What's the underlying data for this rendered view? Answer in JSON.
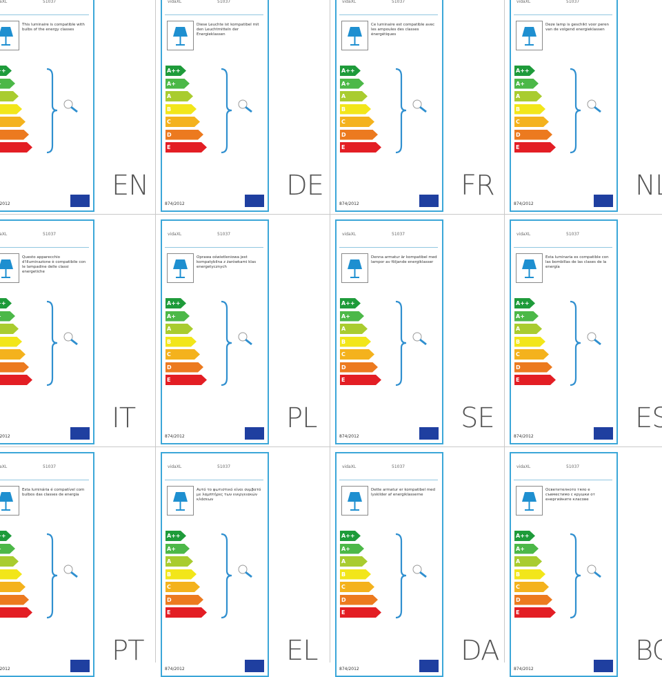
{
  "brand": "vidaXL",
  "code": "51037",
  "regulation": "874/2012",
  "classes": [
    "A++",
    "A+",
    "A",
    "B",
    "C",
    "D",
    "E"
  ],
  "class_colors": [
    "#1e9b3a",
    "#4cb848",
    "#a9cc2f",
    "#f2e61a",
    "#f4b21d",
    "#ec7a1f",
    "#e31e24"
  ],
  "border_color": "#3aa6d8",
  "icons": [
    "lamp-icon",
    "bulb-icon",
    "eu-flag-icon"
  ],
  "labels": [
    {
      "lang": "EN",
      "text": "This luminaire is compatible with bulbs of the energy classes"
    },
    {
      "lang": "DE",
      "text": "Diese Leuchte ist kompatibel mit den Leuchtmitteln der Energieklassen"
    },
    {
      "lang": "FR",
      "text": "Ce luminaire est compatible avec les ampoules des classes énergétiques"
    },
    {
      "lang": "NL",
      "text": "Deze lamp is geschikt voor peren van de volgend energieklassen"
    },
    {
      "lang": "IT",
      "text": "Questo apparecchio d'illuminazione è compatibile con le lampadine delle classi energetiche"
    },
    {
      "lang": "PL",
      "text": "Oprawa oświetleniowa jest kompatybilna z żarówkami klas energetycznych"
    },
    {
      "lang": "SE",
      "text": "Denna armatur är kompatibel med lampor av följande energiklasser"
    },
    {
      "lang": "ES",
      "text": "Esta luminaria es compatible con las bombillas de las clases de la energía"
    },
    {
      "lang": "PT",
      "text": "Esta luminária é compatível com bulbos das classes de energia"
    },
    {
      "lang": "EL",
      "text": "Αυτό το φωτιστικό είναι συμβατό με λαμπτήρες των ενεργειακών κλάσεων"
    },
    {
      "lang": "DA",
      "text": "Dette armatur er kompatibel med lyskilder af energiklasserne"
    },
    {
      "lang": "BG",
      "text": "Осветителното тяло е съвместимо с крушки от енергийните класове"
    }
  ]
}
